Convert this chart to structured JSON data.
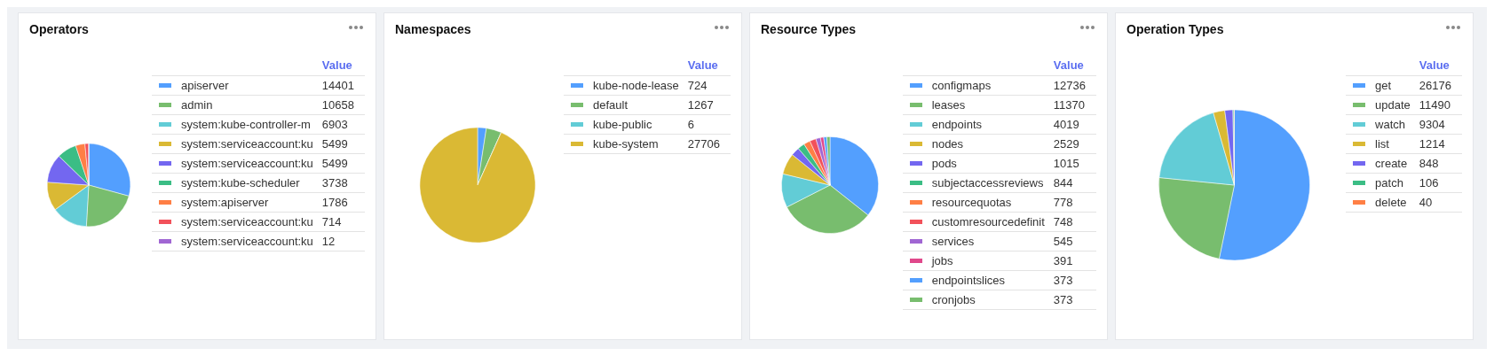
{
  "chart_data": [
    {
      "type": "pie",
      "title": "Operators",
      "legend_title": "Value",
      "legend": "right",
      "data_labels": true,
      "categories": [
        "apiserver",
        "admin",
        "system:kube-controller-m",
        "system:serviceaccount:ku",
        "system:serviceaccount:ku",
        "system:kube-scheduler",
        "system:apiserver",
        "system:serviceaccount:ku",
        "system:serviceaccount:ku"
      ],
      "values": [
        14401,
        10658,
        6903,
        5499,
        5499,
        3738,
        1786,
        714,
        12
      ],
      "colors": [
        "#539ffe",
        "#78bd6e",
        "#62ccd6",
        "#dab934",
        "#7367f0",
        "#3bbd85",
        "#ff7f45",
        "#f2515a",
        "#a066d3"
      ]
    },
    {
      "type": "pie",
      "title": "Namespaces",
      "legend_title": "Value",
      "legend": "right",
      "data_labels": true,
      "categories": [
        "kube-node-lease",
        "default",
        "kube-public",
        "kube-system"
      ],
      "values": [
        724,
        1267,
        6,
        27706
      ],
      "colors": [
        "#539ffe",
        "#78bd6e",
        "#62ccd6",
        "#dab934"
      ]
    },
    {
      "type": "pie",
      "title": "Resource Types",
      "legend_title": "Value",
      "legend": "right",
      "data_labels": true,
      "categories": [
        "configmaps",
        "leases",
        "endpoints",
        "nodes",
        "pods",
        "subjectaccessreviews",
        "resourcequotas",
        "customresourcedefinit",
        "services",
        "jobs",
        "endpointslices",
        "cronjobs"
      ],
      "values": [
        12736,
        11370,
        4019,
        2529,
        1015,
        844,
        778,
        748,
        545,
        391,
        373,
        373
      ],
      "colors": [
        "#539ffe",
        "#78bd6e",
        "#62ccd6",
        "#dab934",
        "#7367f0",
        "#3bbd85",
        "#ff7f45",
        "#f2515a",
        "#a066d3",
        "#e0488b",
        "#539ffe",
        "#78bd6e"
      ]
    },
    {
      "type": "pie",
      "title": "Operation Types",
      "legend_title": "Value",
      "legend": "right",
      "data_labels": true,
      "categories": [
        "get",
        "update",
        "watch",
        "list",
        "create",
        "patch",
        "delete"
      ],
      "values": [
        26176,
        11490,
        9304,
        1214,
        848,
        106,
        40
      ],
      "colors": [
        "#539ffe",
        "#78bd6e",
        "#62ccd6",
        "#dab934",
        "#7367f0",
        "#3bbd85",
        "#ff7f45"
      ]
    }
  ]
}
